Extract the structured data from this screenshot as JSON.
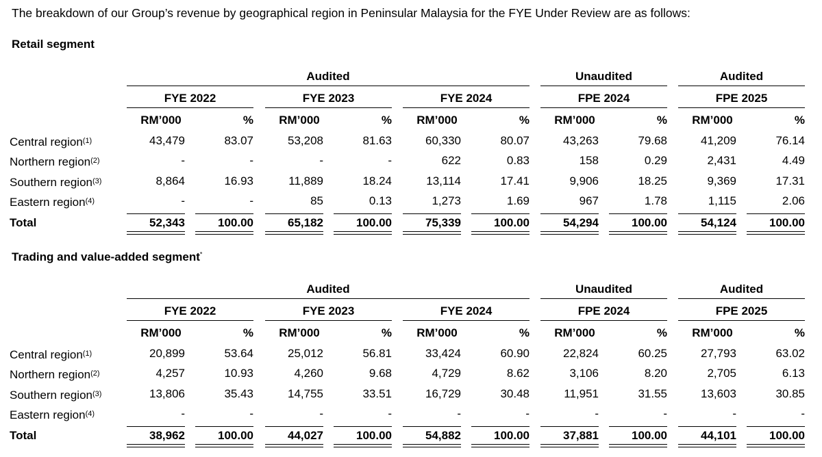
{
  "intro": "The breakdown of our Group’s revenue by geographical region in Peninsular Malaysia for the FYE Under Review are as follows:",
  "retail": {
    "title": "Retail segment",
    "audit_labels": [
      "Audited",
      "Unaudited",
      "Audited"
    ],
    "periods": [
      "FYE 2022",
      "FYE 2023",
      "FYE 2024",
      "FPE 2024",
      "FPE 2025"
    ],
    "units": [
      "RM’000",
      "%"
    ],
    "rows": [
      {
        "label": "Central region",
        "note": "(1)",
        "values": [
          "43,479",
          "83.07",
          "53,208",
          "81.63",
          "60,330",
          "80.07",
          "43,263",
          "79.68",
          "41,209",
          "76.14"
        ]
      },
      {
        "label": "Northern region",
        "note": "(2)",
        "values": [
          "-",
          "-",
          "-",
          "-",
          "622",
          "0.83",
          "158",
          "0.29",
          "2,431",
          "4.49"
        ]
      },
      {
        "label": "Southern region",
        "note": "(3)",
        "values": [
          "8,864",
          "16.93",
          "11,889",
          "18.24",
          "13,114",
          "17.41",
          "9,906",
          "18.25",
          "9,369",
          "17.31"
        ]
      },
      {
        "label": "Eastern region",
        "note": "(4)",
        "values": [
          "-",
          "-",
          "85",
          "0.13",
          "1,273",
          "1.69",
          "967",
          "1.78",
          "1,115",
          "2.06"
        ]
      }
    ],
    "total": {
      "label": "Total",
      "values": [
        "52,343",
        "100.00",
        "65,182",
        "100.00",
        "75,339",
        "100.00",
        "54,294",
        "100.00",
        "54,124",
        "100.00"
      ]
    }
  },
  "trading": {
    "title": "Trading and value-added segment",
    "title_note": "*",
    "audit_labels": [
      "Audited",
      "Unaudited",
      "Audited"
    ],
    "periods": [
      "FYE 2022",
      "FYE 2023",
      "FYE 2024",
      "FPE 2024",
      "FPE 2025"
    ],
    "units": [
      "RM’000",
      "%"
    ],
    "rows": [
      {
        "label": "Central region",
        "note": "(1)",
        "values": [
          "20,899",
          "53.64",
          "25,012",
          "56.81",
          "33,424",
          "60.90",
          "22,824",
          "60.25",
          "27,793",
          "63.02"
        ]
      },
      {
        "label": "Northern region",
        "note": "(2)",
        "values": [
          "4,257",
          "10.93",
          "4,260",
          "9.68",
          "4,729",
          "8.62",
          "3,106",
          "8.20",
          "2,705",
          "6.13"
        ]
      },
      {
        "label": "Southern region",
        "note": "(3)",
        "values": [
          "13,806",
          "35.43",
          "14,755",
          "33.51",
          "16,729",
          "30.48",
          "11,951",
          "31.55",
          "13,603",
          "30.85"
        ]
      },
      {
        "label": "Eastern region",
        "note": "(4)",
        "values": [
          "-",
          "-",
          "-",
          "-",
          "-",
          "-",
          "-",
          "-",
          "-",
          "-"
        ]
      }
    ],
    "total": {
      "label": "Total",
      "values": [
        "38,962",
        "100.00",
        "44,027",
        "100.00",
        "54,882",
        "100.00",
        "37,881",
        "100.00",
        "44,101",
        "100.00"
      ]
    }
  }
}
